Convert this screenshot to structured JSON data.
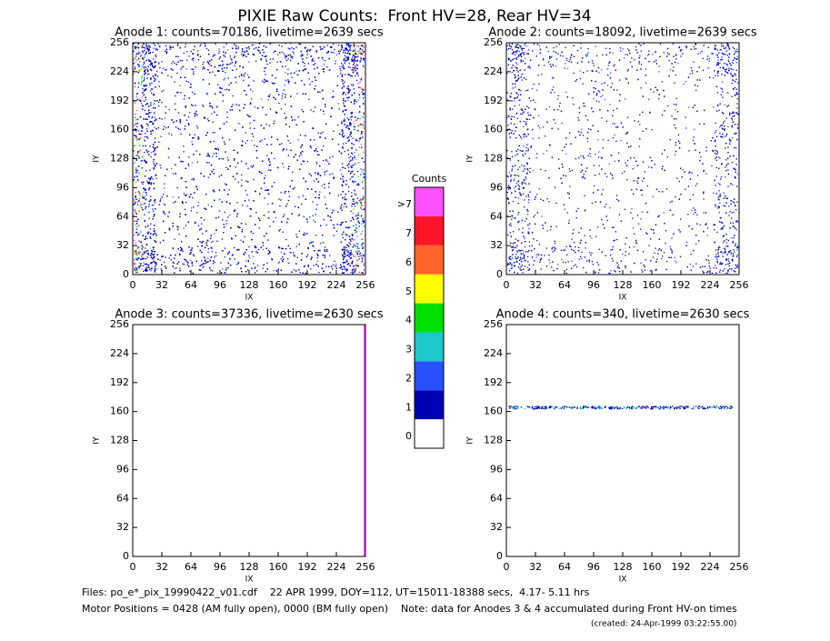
{
  "title": "PIXIE Raw Counts:  Front HV=28, Rear HV=34",
  "chart_data": [
    {
      "type": "heatmap",
      "title": "Anode 1: counts=70186, livetime=2639 secs",
      "xlabel": "IX",
      "ylabel": "IY",
      "xlim": [
        0,
        256
      ],
      "ylim": [
        0,
        256
      ],
      "xticks": [
        0,
        32,
        64,
        96,
        128,
        160,
        192,
        224,
        256
      ],
      "yticks": [
        0,
        32,
        64,
        96,
        128,
        160,
        192,
        224,
        256
      ]
    },
    {
      "type": "heatmap",
      "title": "Anode 2: counts=18092, livetime=2639 secs",
      "xlabel": "IX",
      "ylabel": "IY",
      "xlim": [
        0,
        256
      ],
      "ylim": [
        0,
        256
      ],
      "xticks": [
        0,
        32,
        64,
        96,
        128,
        160,
        192,
        224,
        256
      ],
      "yticks": [
        0,
        32,
        64,
        96,
        128,
        160,
        192,
        224,
        256
      ]
    },
    {
      "type": "heatmap",
      "title": "Anode 3: counts=37336, livetime=2630 secs",
      "xlabel": "IX",
      "ylabel": "IY",
      "xlim": [
        0,
        256
      ],
      "ylim": [
        0,
        256
      ],
      "xticks": [
        0,
        32,
        64,
        96,
        128,
        160,
        192,
        224,
        256
      ],
      "yticks": [
        0,
        32,
        64,
        96,
        128,
        160,
        192,
        224,
        256
      ]
    },
    {
      "type": "heatmap",
      "title": "Anode 4: counts=340, livetime=2630 secs",
      "xlabel": "IX",
      "ylabel": "IY",
      "xlim": [
        0,
        256
      ],
      "ylim": [
        0,
        256
      ],
      "xticks": [
        0,
        32,
        64,
        96,
        128,
        160,
        192,
        224,
        256
      ],
      "yticks": [
        0,
        32,
        64,
        96,
        128,
        160,
        192,
        224,
        256
      ]
    }
  ],
  "colorbar": {
    "title": "Counts",
    "labels": [
      "0",
      "1",
      "2",
      "3",
      "4",
      "5",
      "6",
      "7",
      ">7"
    ],
    "colors": [
      "#ffffff",
      "#0000b4",
      "#2850ff",
      "#1ec8c8",
      "#00e000",
      "#ffff00",
      "#ff6428",
      "#ff1428",
      "#ff50ff"
    ]
  },
  "footer": [
    "Files: po_e*_pix_19990422_v01.cdf    22 APR 1999, DOY=112, UT=15011-18388 secs,  4.17- 5.11 hrs",
    "Motor Positions = 0428 (AM fully open), 0000 (BM fully open)    Note: data for Anodes 3 & 4 accumulated during Front HV-on times",
    "(created: 24-Apr-1999 03:22:55.00)"
  ]
}
